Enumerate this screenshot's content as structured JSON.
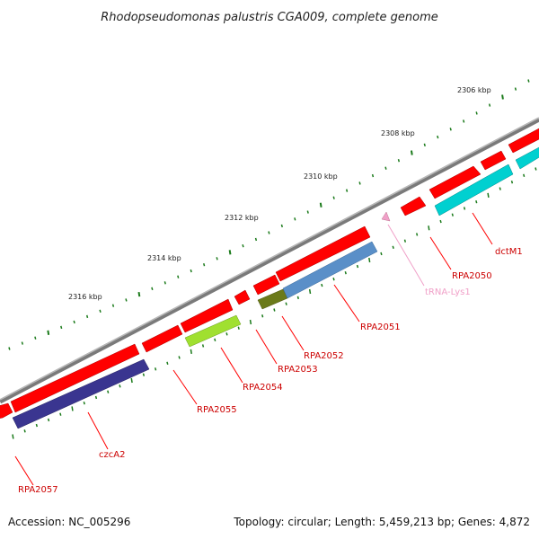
{
  "title": "Rhodopseudomonas palustris CGA009, complete genome",
  "footer": {
    "accession": "Accession: NC_005296",
    "summary": "Topology: circular; Length: 5,459,213 bp; Genes: 4,872"
  },
  "colors": {
    "backbone": "#808080",
    "feature_red": "#ff0000",
    "label_red": "#cc0000",
    "trna_pink": "#f0a0c8",
    "tick_green": "#1a7a1a"
  },
  "ticks": [
    {
      "label": "2306 kbp"
    },
    {
      "label": "2308 kbp"
    },
    {
      "label": "2310 kbp"
    },
    {
      "label": "2312 kbp"
    },
    {
      "label": "2314 kbp"
    },
    {
      "label": "2316 kbp"
    }
  ],
  "genes": [
    {
      "label": "dctM1",
      "color": "#cc0000",
      "inner_color": "#00d0d0"
    },
    {
      "label": "RPA2050",
      "color": "#cc0000"
    },
    {
      "label": "tRNA-Lys1",
      "color": "#f0a0c8"
    },
    {
      "label": "RPA2051",
      "color": "#cc0000",
      "inner_color": "#5a8fc8"
    },
    {
      "label": "RPA2052",
      "color": "#cc0000",
      "inner_color": "#6b7a1a"
    },
    {
      "label": "RPA2053",
      "color": "#cc0000"
    },
    {
      "label": "RPA2054",
      "color": "#cc0000",
      "inner_color": "#a0e030"
    },
    {
      "label": "RPA2055",
      "color": "#cc0000"
    },
    {
      "label": "czcA2",
      "color": "#cc0000",
      "inner_color": "#3a3590"
    },
    {
      "label": "RPA2057",
      "color": "#cc0000"
    }
  ]
}
